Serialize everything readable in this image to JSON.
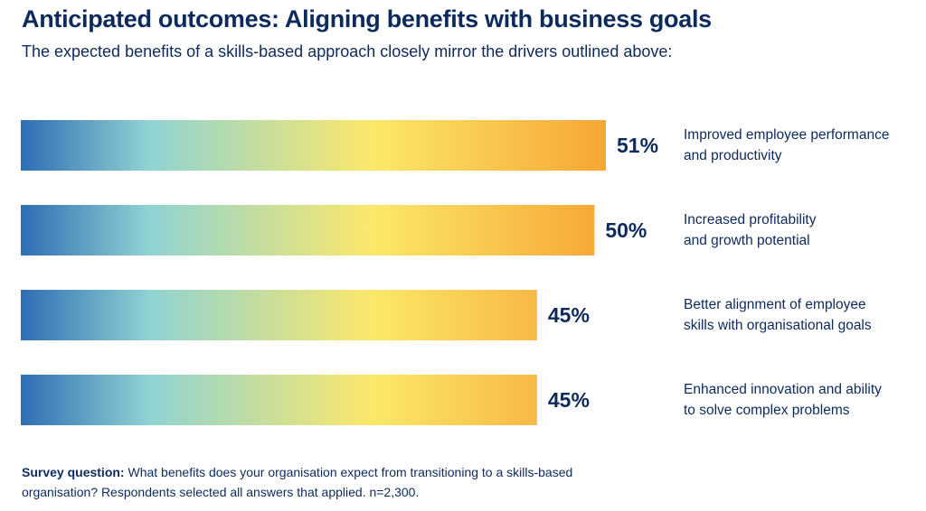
{
  "header": {
    "title": "Anticipated outcomes: Aligning benefits with business goals",
    "subtitle": "The expected benefits of a skills-based approach closely mirror the drivers outlined above:"
  },
  "chart_data": {
    "type": "bar",
    "orientation": "horizontal",
    "categories": [
      [
        "Improved employee performance",
        "and productivity"
      ],
      [
        "Increased profitability",
        "and growth potential"
      ],
      [
        "Better alignment of employee",
        "skills with organisational goals"
      ],
      [
        "Enhanced innovation and ability",
        "to solve complex problems"
      ]
    ],
    "values": [
      51,
      50,
      45,
      45
    ],
    "value_labels": [
      "51%",
      "50%",
      "45%",
      "45%"
    ],
    "unit": "%",
    "xlim": [
      0,
      51
    ],
    "grid": false,
    "legend": "none",
    "colors": {
      "gradient_start": "#2f6db5",
      "gradient_teal": "#8fd3d2",
      "gradient_yellow": "#fbe86a",
      "gradient_end": "#f7a634",
      "text": "#0d2a5c"
    }
  },
  "footnote": {
    "label": "Survey question:",
    "text": " What benefits does your organisation expect from transitioning to a skills-based organisation? Respondents selected all answers that applied. n=2,300."
  }
}
